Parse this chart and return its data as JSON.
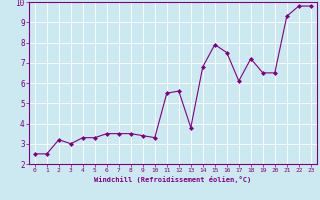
{
  "x": [
    0,
    1,
    2,
    3,
    4,
    5,
    6,
    7,
    8,
    9,
    10,
    11,
    12,
    13,
    14,
    15,
    16,
    17,
    18,
    19,
    20,
    21,
    22,
    23
  ],
  "y": [
    2.5,
    2.5,
    3.2,
    3.0,
    3.3,
    3.3,
    3.5,
    3.5,
    3.5,
    3.4,
    3.3,
    5.5,
    5.6,
    3.8,
    6.8,
    7.9,
    7.5,
    6.1,
    7.2,
    6.5,
    6.5,
    9.3,
    9.8,
    9.8
  ],
  "xlabel": "Windchill (Refroidissement éolien,°C)",
  "xlim": [
    -0.5,
    23.5
  ],
  "ylim": [
    2,
    10
  ],
  "yticks": [
    2,
    3,
    4,
    5,
    6,
    7,
    8,
    9,
    10
  ],
  "xticks": [
    0,
    1,
    2,
    3,
    4,
    5,
    6,
    7,
    8,
    9,
    10,
    11,
    12,
    13,
    14,
    15,
    16,
    17,
    18,
    19,
    20,
    21,
    22,
    23
  ],
  "line_color": "#800080",
  "marker": "D",
  "marker_size": 2,
  "bg_color": "#cce8f0",
  "grid_color": "#ffffff",
  "axis_color": "#800080",
  "label_color": "#800080",
  "tick_color": "#800080",
  "font_family": "monospace",
  "xlabel_fontsize": 5.0,
  "tick_fontsize_x": 4.5,
  "tick_fontsize_y": 5.5
}
